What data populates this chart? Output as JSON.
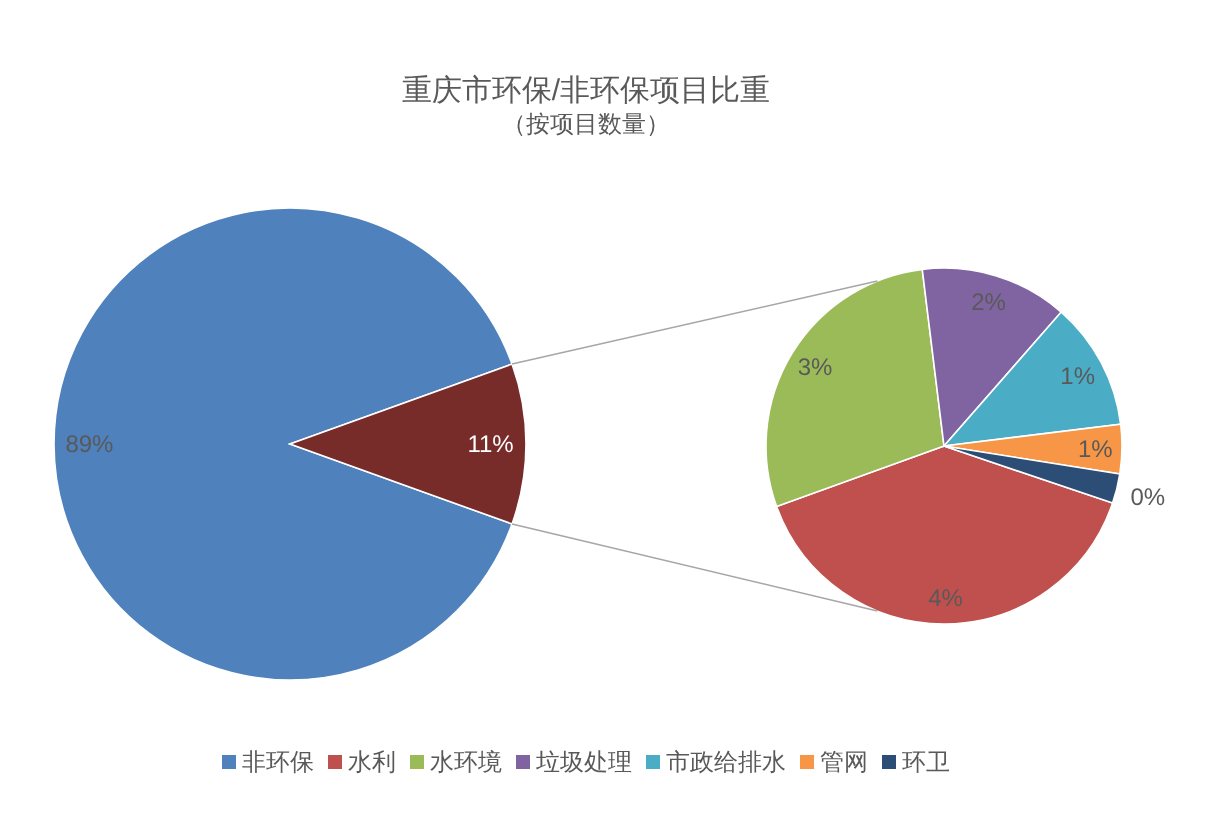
{
  "chart_data": [
    {
      "type": "pie",
      "title": "重庆市环保/非环保项目比重",
      "subtitle": "（按项目数量）",
      "categories": [
        "非环保",
        null
      ],
      "values": [
        89,
        11
      ],
      "colors": [
        "#4f81bd",
        "#772c2a"
      ],
      "value_labels": [
        "89%",
        "11%"
      ],
      "legend": "bottom"
    },
    {
      "type": "pie",
      "categories": [
        "水利",
        "水环境",
        "垃圾处理",
        "市政给排水",
        "管网",
        "环卫"
      ],
      "values": [
        4.4,
        3.2,
        1.5,
        1.3,
        0.5,
        0.3
      ],
      "colors": [
        "#c0504d",
        "#9bbb59",
        "#8064a2",
        "#4bacc6",
        "#f79646",
        "#2c4d75"
      ],
      "value_labels": [
        "4%",
        "3%",
        "2%",
        "1%",
        "1%",
        "0%"
      ],
      "legend": "bottom"
    }
  ]
}
